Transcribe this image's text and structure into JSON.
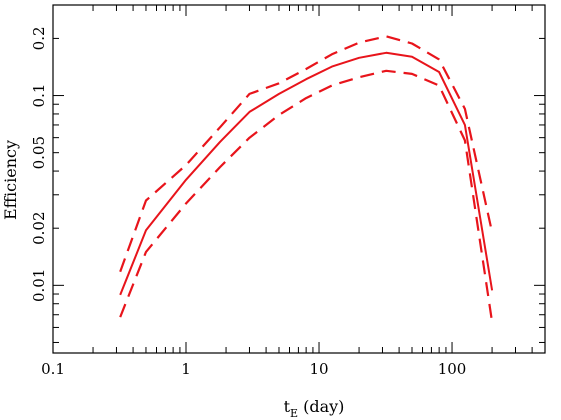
{
  "chart_data": {
    "type": "line",
    "xlabel": "t",
    "xlabel_subscript": "E",
    "xlabel_unit": "(day)",
    "ylabel": "Efficiency",
    "x_scale": "log",
    "y_scale": "log",
    "xlim": [
      0.1,
      500
    ],
    "ylim": [
      0.0044,
      0.3
    ],
    "x_ticks": [
      {
        "value": 0.1,
        "label": "0.1"
      },
      {
        "value": 1,
        "label": "1"
      },
      {
        "value": 10,
        "label": "10"
      },
      {
        "value": 100,
        "label": "100"
      }
    ],
    "y_ticks": [
      {
        "value": 0.01,
        "label": "0.01"
      },
      {
        "value": 0.02,
        "label": "0.02"
      },
      {
        "value": 0.05,
        "label": "0.05"
      },
      {
        "value": 0.1,
        "label": "0.1"
      },
      {
        "value": 0.2,
        "label": "0.2"
      }
    ],
    "grid": false,
    "series": [
      {
        "style": "solid",
        "color": "#e8141b",
        "points": [
          [
            0.32,
            0.0089
          ],
          [
            0.5,
            0.0195
          ],
          [
            1.0,
            0.036
          ],
          [
            1.8,
            0.057
          ],
          [
            3.0,
            0.082
          ],
          [
            5.0,
            0.102
          ],
          [
            8.0,
            0.122
          ],
          [
            12.5,
            0.142
          ],
          [
            20.0,
            0.158
          ],
          [
            32.0,
            0.168
          ],
          [
            50.0,
            0.16
          ],
          [
            80.0,
            0.133
          ],
          [
            125.0,
            0.07
          ],
          [
            200.0,
            0.0094
          ]
        ]
      },
      {
        "style": "dashed",
        "color": "#e8141b",
        "points": [
          [
            0.32,
            0.0118
          ],
          [
            0.5,
            0.028
          ],
          [
            1.0,
            0.043
          ],
          [
            1.8,
            0.068
          ],
          [
            3.0,
            0.102
          ],
          [
            5.0,
            0.116
          ],
          [
            8.0,
            0.138
          ],
          [
            12.5,
            0.165
          ],
          [
            20.0,
            0.19
          ],
          [
            32.0,
            0.205
          ],
          [
            50.0,
            0.188
          ],
          [
            80.0,
            0.155
          ],
          [
            125.0,
            0.085
          ],
          [
            200.0,
            0.019
          ]
        ]
      },
      {
        "style": "dashed",
        "color": "#e8141b",
        "points": [
          [
            0.32,
            0.0068
          ],
          [
            0.5,
            0.015
          ],
          [
            1.0,
            0.027
          ],
          [
            1.8,
            0.042
          ],
          [
            3.0,
            0.06
          ],
          [
            5.0,
            0.079
          ],
          [
            8.0,
            0.097
          ],
          [
            12.5,
            0.113
          ],
          [
            20.0,
            0.125
          ],
          [
            32.0,
            0.135
          ],
          [
            50.0,
            0.13
          ],
          [
            80.0,
            0.113
          ],
          [
            125.0,
            0.058
          ],
          [
            200.0,
            0.0064
          ]
        ]
      }
    ]
  }
}
